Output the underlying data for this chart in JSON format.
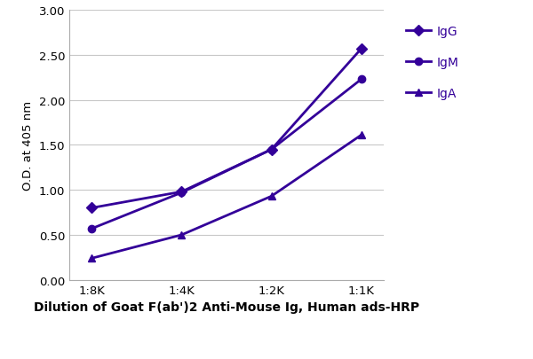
{
  "x_labels": [
    "1:8K",
    "1:4K",
    "1:2K",
    "1:1K"
  ],
  "x_values": [
    0,
    1,
    2,
    3
  ],
  "IgG": [
    0.8,
    0.98,
    1.45,
    2.57
  ],
  "IgM": [
    0.57,
    0.97,
    1.45,
    2.23
  ],
  "IgA": [
    0.24,
    0.5,
    0.93,
    1.61
  ],
  "color": "#330099",
  "IgG_marker": "D",
  "IgM_marker": "o",
  "IgA_marker": "^",
  "xlabel": "Dilution of Goat F(ab')2 Anti-Mouse Ig, Human ads-HRP",
  "ylabel": "O.D. at 405 nm",
  "ylim": [
    0.0,
    3.0
  ],
  "yticks": [
    0.0,
    0.5,
    1.0,
    1.5,
    2.0,
    2.5,
    3.0
  ],
  "axis_fontsize": 9.5,
  "xlabel_fontsize": 10,
  "legend_fontsize": 10,
  "linewidth": 2.0,
  "markersize": 6,
  "background_color": "#ffffff",
  "grid_color": "#c8c8c8"
}
